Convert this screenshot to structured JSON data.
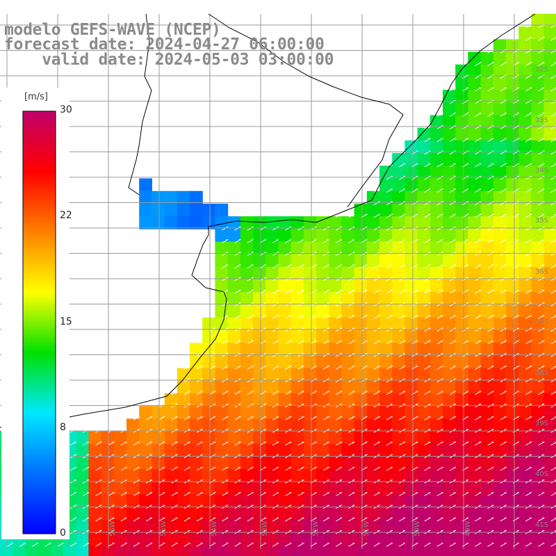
{
  "title": {
    "line1": "modelo GEFS-WAVE (NCEP)",
    "line2": "forecast date: 2024-04-27 06:00:00",
    "line3": "    valid date: 2024-05-03 03:00:00"
  },
  "colorbar": {
    "units": "[m/s]",
    "ticks": [
      {
        "value": 30,
        "label": "30"
      },
      {
        "value": 22,
        "label": "22"
      },
      {
        "value": 15,
        "label": "15"
      },
      {
        "value": 8,
        "label": "8"
      },
      {
        "value": 0,
        "label": "0"
      }
    ],
    "range": [
      0,
      30
    ],
    "colors": [
      "#0000ff",
      "#0070ff",
      "#00e8ff",
      "#00e000",
      "#ffff00",
      "#ff8000",
      "#ff0000",
      "#c0006a"
    ]
  },
  "map": {
    "lat_labels": [
      "32S",
      "33S",
      "34S",
      "35S",
      "36S",
      "37S",
      "38S",
      "39S",
      "40S",
      "41S"
    ],
    "lon_labels": [
      "56W",
      "55W",
      "54W",
      "53W",
      "52W",
      "51W",
      "50W",
      "49W"
    ],
    "land_color": "#ffffff",
    "grid_color": "#a0a0a0",
    "coast_color": "#000000",
    "arrow_color": "#ffffff"
  }
}
